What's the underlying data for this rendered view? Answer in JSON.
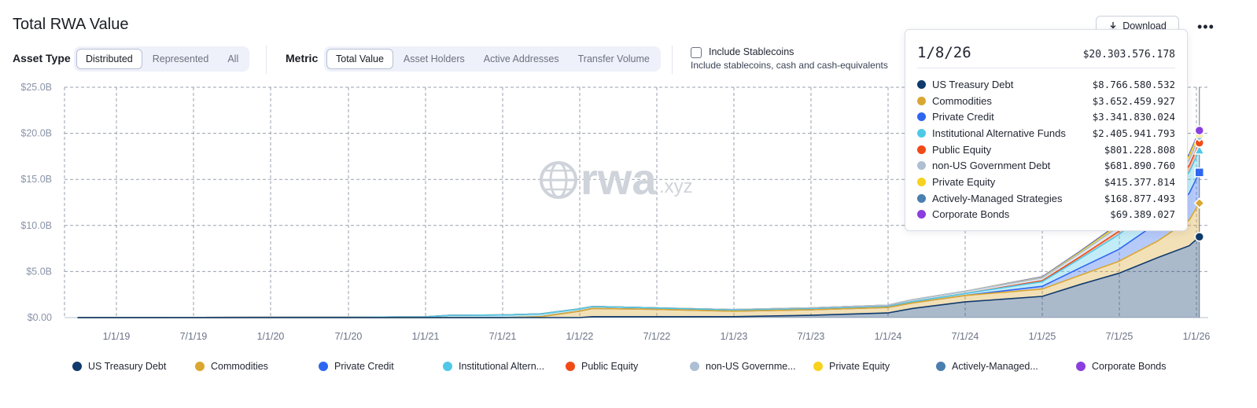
{
  "header": {
    "title": "Total RWA Value",
    "download_label": "Download",
    "more_label": "•••"
  },
  "controls": {
    "asset_type_label": "Asset Type",
    "asset_type_options": [
      "Distributed",
      "Represented",
      "All"
    ],
    "asset_type_selected": "Distributed",
    "metric_label": "Metric",
    "metric_options": [
      "Total Value",
      "Asset Holders",
      "Active Addresses",
      "Transfer Volume"
    ],
    "metric_selected": "Total Value",
    "stablecoins_label": "Include Stablecoins",
    "stablecoins_sub": "Include stablecoins, cash and cash-equivalents",
    "stablecoins_checked": false
  },
  "watermark": {
    "main": "rwa",
    "sub": ".xyz"
  },
  "tooltip": {
    "date": "1/8/26",
    "total": "$20.303.576.178",
    "rows": [
      {
        "name": "US Treasury Debt",
        "value": "$8.766.580.532",
        "color": "#0f3a6b"
      },
      {
        "name": "Commodities",
        "value": "$3.652.459.927",
        "color": "#d9a732"
      },
      {
        "name": "Private Credit",
        "value": "$3.341.830.024",
        "color": "#2f66f0"
      },
      {
        "name": "Institutional Alternative Funds",
        "value": "$2.405.941.793",
        "color": "#4fc8e8"
      },
      {
        "name": "Public Equity",
        "value": "$801.228.808",
        "color": "#f04a17"
      },
      {
        "name": "non-US Government Debt",
        "value": "$681.890.760",
        "color": "#aebfd3"
      },
      {
        "name": "Private Equity",
        "value": "$415.377.814",
        "color": "#f7d21c"
      },
      {
        "name": "Actively-Managed Strategies",
        "value": "$168.877.493",
        "color": "#4a7fb0"
      },
      {
        "name": "Corporate Bonds",
        "value": "$69.389.027",
        "color": "#8a3ee0"
      }
    ]
  },
  "legend": [
    {
      "label": "US Treasury Debt",
      "color": "#0f3a6b"
    },
    {
      "label": "Commodities",
      "color": "#d9a732"
    },
    {
      "label": "Private Credit",
      "color": "#2f66f0"
    },
    {
      "label": "Institutional Altern...",
      "color": "#4fc8e8"
    },
    {
      "label": "Public Equity",
      "color": "#f04a17"
    },
    {
      "label": "non-US Governme...",
      "color": "#aebfd3"
    },
    {
      "label": "Private Equity",
      "color": "#f7d21c"
    },
    {
      "label": "Actively-Managed...",
      "color": "#4a7fb0"
    },
    {
      "label": "Corporate Bonds",
      "color": "#8a3ee0"
    }
  ],
  "chart_data": {
    "type": "area",
    "stacked": true,
    "title": "Total RWA Value",
    "xlabel": "",
    "ylabel": "",
    "grid": true,
    "legend_position": "bottom",
    "y_ticks": [
      "$0.00",
      "$5.0B",
      "$10.0B",
      "$15.0B",
      "$20.0B",
      "$25.0B"
    ],
    "x_ticks": [
      "1/1/19",
      "7/1/19",
      "1/1/20",
      "7/1/20",
      "1/1/21",
      "7/1/21",
      "1/1/22",
      "7/1/22",
      "1/1/23",
      "7/1/23",
      "1/1/24",
      "7/1/24",
      "1/1/25",
      "7/1/25",
      "1/1/26"
    ],
    "x_range": [
      "2018-10-01",
      "2026-01-08"
    ],
    "ylim": [
      0,
      25
    ],
    "y_unit": "$B",
    "x": [
      "2018-10-01",
      "2019-07-01",
      "2020-07-01",
      "2021-01-01",
      "2021-03-01",
      "2021-07-01",
      "2021-10-01",
      "2022-01-01",
      "2022-02-01",
      "2022-07-01",
      "2023-01-01",
      "2023-07-01",
      "2024-01-01",
      "2024-03-01",
      "2024-07-01",
      "2025-01-01",
      "2025-04-01",
      "2025-07-01",
      "2025-10-01",
      "2025-12-15",
      "2026-01-08"
    ],
    "series": [
      {
        "name": "US Treasury Debt",
        "color": "#0f3a6b",
        "values": [
          0,
          0,
          0,
          0,
          0,
          0,
          0,
          0,
          0.1,
          0.1,
          0.1,
          0.25,
          0.5,
          1.0,
          1.7,
          2.3,
          3.6,
          4.8,
          6.5,
          7.8,
          8.77
        ]
      },
      {
        "name": "Commodities",
        "color": "#d9a732",
        "values": [
          0,
          0,
          0,
          0,
          0,
          0,
          0.1,
          0.7,
          0.9,
          0.8,
          0.6,
          0.6,
          0.6,
          0.6,
          0.7,
          0.8,
          1.0,
          1.3,
          1.8,
          2.8,
          3.65
        ]
      },
      {
        "name": "Private Credit",
        "color": "#2f66f0",
        "values": [
          0,
          0,
          0,
          0,
          0,
          0,
          0,
          0,
          0,
          0,
          0,
          0,
          0,
          0,
          0,
          0.3,
          0.8,
          1.3,
          2.0,
          2.9,
          3.34
        ]
      },
      {
        "name": "Institutional Alternative Funds",
        "color": "#4fc8e8",
        "values": [
          0,
          0.02,
          0.04,
          0.08,
          0.25,
          0.28,
          0.3,
          0.25,
          0.2,
          0.15,
          0.12,
          0.1,
          0.1,
          0.15,
          0.2,
          0.5,
          1.0,
          1.6,
          2.0,
          2.3,
          2.41
        ]
      },
      {
        "name": "Public Equity",
        "color": "#f04a17",
        "values": [
          0,
          0,
          0,
          0,
          0,
          0,
          0,
          0,
          0,
          0,
          0,
          0,
          0,
          0,
          0,
          0.1,
          0.2,
          0.35,
          0.5,
          0.7,
          0.8
        ]
      },
      {
        "name": "non-US Government Debt",
        "color": "#aebfd3",
        "values": [
          0,
          0,
          0,
          0,
          0,
          0,
          0,
          0,
          0,
          0,
          0.05,
          0.1,
          0.15,
          0.2,
          0.25,
          0.3,
          0.4,
          0.5,
          0.55,
          0.65,
          0.68
        ]
      },
      {
        "name": "Private Equity",
        "color": "#f7d21c",
        "values": [
          0,
          0,
          0,
          0,
          0,
          0,
          0,
          0,
          0,
          0,
          0,
          0,
          0,
          0,
          0,
          0.05,
          0.1,
          0.2,
          0.3,
          0.38,
          0.42
        ]
      },
      {
        "name": "Actively-Managed Strategies",
        "color": "#4a7fb0",
        "values": [
          0,
          0,
          0,
          0,
          0,
          0,
          0,
          0,
          0,
          0,
          0,
          0,
          0,
          0,
          0,
          0.05,
          0.08,
          0.1,
          0.12,
          0.15,
          0.17
        ]
      },
      {
        "name": "Corporate Bonds",
        "color": "#8a3ee0",
        "values": [
          0,
          0,
          0,
          0,
          0,
          0,
          0,
          0,
          0,
          0,
          0,
          0,
          0,
          0,
          0,
          0.02,
          0.03,
          0.04,
          0.05,
          0.06,
          0.07
        ]
      }
    ],
    "hover": {
      "date": "2026-01-08",
      "total": 20.3
    }
  }
}
